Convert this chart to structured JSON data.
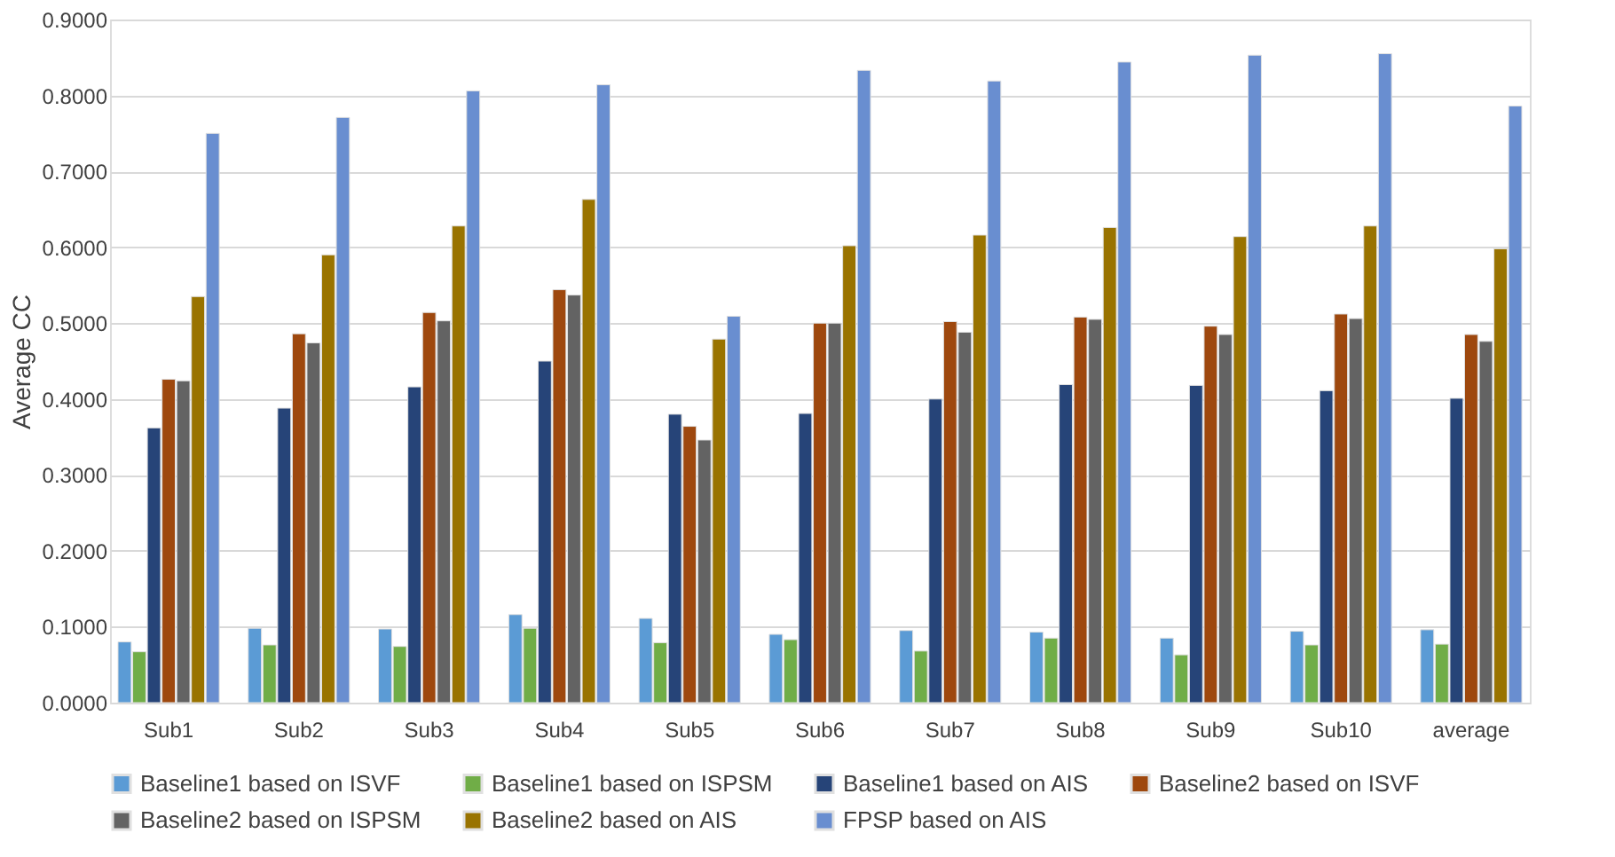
{
  "chart_data": {
    "type": "bar",
    "ylabel": "Average CC",
    "categories": [
      "Sub1",
      "Sub2",
      "Sub3",
      "Sub4",
      "Sub5",
      "Sub6",
      "Sub7",
      "Sub8",
      "Sub9",
      "Sub10",
      "average"
    ],
    "series": [
      {
        "name": "Baseline1 based on ISVF",
        "color": "#5b9bd5",
        "values": [
          0.08,
          0.098,
          0.097,
          0.116,
          0.111,
          0.09,
          0.095,
          0.093,
          0.085,
          0.094,
          0.096
        ]
      },
      {
        "name": "Baseline1 based on ISPSM",
        "color": "#70ad47",
        "values": [
          0.067,
          0.076,
          0.074,
          0.098,
          0.079,
          0.083,
          0.068,
          0.085,
          0.063,
          0.076,
          0.077
        ]
      },
      {
        "name": "Baseline1 based on AIS",
        "color": "#264478",
        "values": [
          0.362,
          0.388,
          0.416,
          0.45,
          0.38,
          0.381,
          0.4,
          0.419,
          0.418,
          0.411,
          0.401
        ]
      },
      {
        "name": "Baseline2 based on ISVF",
        "color": "#9e480e",
        "values": [
          0.426,
          0.486,
          0.514,
          0.544,
          0.364,
          0.5,
          0.502,
          0.508,
          0.496,
          0.512,
          0.485
        ]
      },
      {
        "name": "Baseline2 based on ISPSM",
        "color": "#636363",
        "values": [
          0.424,
          0.474,
          0.503,
          0.537,
          0.346,
          0.5,
          0.488,
          0.505,
          0.485,
          0.506,
          0.476
        ]
      },
      {
        "name": "Baseline2 based on AIS",
        "color": "#997300",
        "values": [
          0.535,
          0.59,
          0.628,
          0.663,
          0.479,
          0.602,
          0.616,
          0.626,
          0.614,
          0.628,
          0.598
        ]
      },
      {
        "name": "FPSP based on AIS",
        "color": "#698ed0",
        "values": [
          0.75,
          0.771,
          0.806,
          0.814,
          0.509,
          0.833,
          0.819,
          0.844,
          0.853,
          0.855,
          0.786
        ]
      }
    ],
    "ylim": [
      0,
      0.9
    ],
    "yticks": [
      {
        "value": 0,
        "label": "0.0000"
      },
      {
        "value": 0.1,
        "label": "0.1000"
      },
      {
        "value": 0.2,
        "label": "0.2000"
      },
      {
        "value": 0.3,
        "label": "0.3000"
      },
      {
        "value": 0.4,
        "label": "0.4000"
      },
      {
        "value": 0.5,
        "label": "0.5000"
      },
      {
        "value": 0.6,
        "label": "0.6000"
      },
      {
        "value": 0.7,
        "label": "0.7000"
      },
      {
        "value": 0.8,
        "label": "0.8000"
      },
      {
        "value": 0.9,
        "label": "0.9000"
      }
    ],
    "grid": "y",
    "legend": "bottom"
  }
}
